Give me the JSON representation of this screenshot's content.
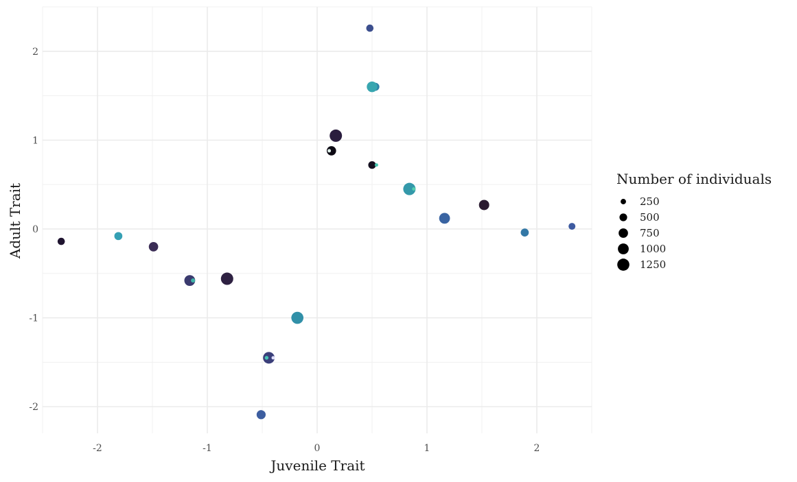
{
  "chart_data": {
    "type": "scatter",
    "xlabel": "Juvenile Trait",
    "ylabel": "Adult Trait",
    "xlim": [
      -2.5,
      2.5
    ],
    "ylim": [
      -2.3,
      2.5
    ],
    "x_ticks": [
      -2,
      -1,
      0,
      1,
      2
    ],
    "y_ticks": [
      -2,
      -1,
      0,
      1,
      2
    ],
    "x_tick_labels": [
      "-2",
      "-1",
      "0",
      "1",
      "2"
    ],
    "y_tick_labels": [
      "-2",
      "-1",
      "0",
      "1",
      "2"
    ],
    "grid": true,
    "legend": {
      "title": "Number of individuals",
      "position": "right",
      "entries": [
        {
          "label": "250",
          "size": 250
        },
        {
          "label": "500",
          "size": 500
        },
        {
          "label": "750",
          "size": 750
        },
        {
          "label": "1000",
          "size": 1000
        },
        {
          "label": "1250",
          "size": 1250
        }
      ]
    },
    "points": [
      {
        "x": -2.33,
        "y": -0.14,
        "size": 450,
        "color": "#1f1430"
      },
      {
        "x": -1.81,
        "y": -0.08,
        "size": 550,
        "color": "#35a0b4"
      },
      {
        "x": -1.49,
        "y": -0.2,
        "size": 750,
        "color": "#3b2d56"
      },
      {
        "x": -1.16,
        "y": -0.58,
        "size": 1000,
        "color": "#3a3a6e"
      },
      {
        "x": -1.13,
        "y": -0.58,
        "size": 150,
        "color": "#3fb3a8"
      },
      {
        "x": -0.82,
        "y": -0.56,
        "size": 1300,
        "color": "#2e2142"
      },
      {
        "x": -0.51,
        "y": -2.09,
        "size": 700,
        "color": "#3d5ea0"
      },
      {
        "x": -0.44,
        "y": -1.45,
        "size": 1150,
        "color": "#3b3f7a"
      },
      {
        "x": -0.46,
        "y": -1.45,
        "size": 120,
        "color": "#48c4b5"
      },
      {
        "x": -0.4,
        "y": -1.45,
        "size": 90,
        "color": "#e0e0ff"
      },
      {
        "x": -0.18,
        "y": -1.0,
        "size": 1250,
        "color": "#3190a8"
      },
      {
        "x": 0.13,
        "y": 0.88,
        "size": 750,
        "color": "#0d0a14"
      },
      {
        "x": 0.11,
        "y": 0.88,
        "size": 90,
        "color": "#e0f0ea"
      },
      {
        "x": 0.17,
        "y": 1.05,
        "size": 1300,
        "color": "#2a1d3e"
      },
      {
        "x": 0.48,
        "y": 2.26,
        "size": 450,
        "color": "#3c4f8e"
      },
      {
        "x": 0.53,
        "y": 1.6,
        "size": 550,
        "color": "#2f82a8"
      },
      {
        "x": 0.5,
        "y": 1.6,
        "size": 950,
        "color": "#38a6b0"
      },
      {
        "x": 0.5,
        "y": 0.72,
        "size": 500,
        "color": "#151020"
      },
      {
        "x": 0.54,
        "y": 0.72,
        "size": 100,
        "color": "#45c3ad"
      },
      {
        "x": 0.84,
        "y": 0.45,
        "size": 1300,
        "color": "#3499aa"
      },
      {
        "x": 0.88,
        "y": 0.45,
        "size": 100,
        "color": "#55d0b0"
      },
      {
        "x": 1.16,
        "y": 0.12,
        "size": 1000,
        "color": "#3a64a2"
      },
      {
        "x": 1.52,
        "y": 0.27,
        "size": 900,
        "color": "#2a1a30"
      },
      {
        "x": 1.89,
        "y": -0.04,
        "size": 550,
        "color": "#3378a6"
      },
      {
        "x": 2.32,
        "y": 0.03,
        "size": 400,
        "color": "#3d5aa0"
      }
    ]
  }
}
